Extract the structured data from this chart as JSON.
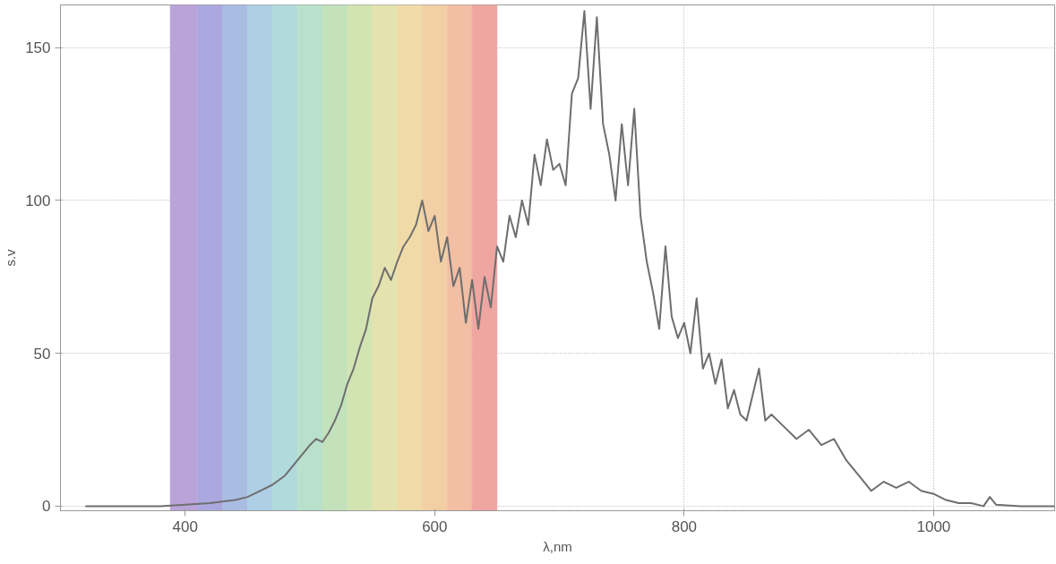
{
  "chart_data": {
    "type": "line",
    "xlabel": "λ,nm",
    "ylabel": "s.v",
    "xlim": [
      300,
      1097
    ],
    "ylim": [
      -1.5,
      164
    ],
    "xticks": [
      400,
      600,
      800,
      1000
    ],
    "yticks": [
      0,
      50,
      100,
      150
    ],
    "grid": true,
    "marker": "none",
    "line_style": "solid",
    "bands": [
      {
        "axis": "x",
        "from": 388,
        "to": 410,
        "color": "#b9a3d9"
      },
      {
        "axis": "x",
        "from": 410,
        "to": 430,
        "color": "#aaa8de"
      },
      {
        "axis": "x",
        "from": 430,
        "to": 450,
        "color": "#a9bde3"
      },
      {
        "axis": "x",
        "from": 450,
        "to": 470,
        "color": "#aecfe6"
      },
      {
        "axis": "x",
        "from": 470,
        "to": 490,
        "color": "#b1dadd"
      },
      {
        "axis": "x",
        "from": 490,
        "to": 510,
        "color": "#b8e0cb"
      },
      {
        "axis": "x",
        "from": 510,
        "to": 530,
        "color": "#c3e2bc"
      },
      {
        "axis": "x",
        "from": 530,
        "to": 550,
        "color": "#d3e4b3"
      },
      {
        "axis": "x",
        "from": 550,
        "to": 570,
        "color": "#e4e2ae"
      },
      {
        "axis": "x",
        "from": 570,
        "to": 590,
        "color": "#f0dba8"
      },
      {
        "axis": "x",
        "from": 590,
        "to": 610,
        "color": "#f3cfa6"
      },
      {
        "axis": "x",
        "from": 610,
        "to": 630,
        "color": "#f2bea4"
      },
      {
        "axis": "x",
        "from": 630,
        "to": 650,
        "color": "#efa6a0"
      }
    ],
    "series": [
      {
        "color": "#6e6e6e",
        "x": [
          320,
          350,
          380,
          400,
          420,
          440,
          450,
          460,
          470,
          480,
          490,
          500,
          505,
          510,
          515,
          520,
          525,
          530,
          535,
          540,
          545,
          550,
          555,
          560,
          565,
          570,
          575,
          580,
          585,
          590,
          595,
          600,
          605,
          610,
          615,
          620,
          625,
          630,
          635,
          640,
          645,
          650,
          655,
          660,
          665,
          670,
          675,
          680,
          685,
          690,
          695,
          700,
          705,
          710,
          715,
          720,
          725,
          730,
          735,
          740,
          745,
          750,
          755,
          760,
          765,
          770,
          775,
          780,
          785,
          790,
          795,
          800,
          805,
          810,
          815,
          820,
          825,
          830,
          835,
          840,
          845,
          850,
          860,
          865,
          870,
          880,
          890,
          900,
          910,
          920,
          930,
          940,
          950,
          960,
          970,
          980,
          990,
          1000,
          1010,
          1020,
          1030,
          1040,
          1045,
          1050,
          1070,
          1097
        ],
        "values": [
          0,
          0,
          0,
          0.5,
          1,
          2,
          3,
          5,
          7,
          10,
          15,
          20,
          22,
          21,
          24,
          28,
          33,
          40,
          45,
          52,
          58,
          68,
          72,
          78,
          74,
          80,
          85,
          88,
          92,
          100,
          90,
          95,
          80,
          88,
          72,
          78,
          60,
          74,
          58,
          75,
          65,
          85,
          80,
          95,
          88,
          100,
          92,
          115,
          105,
          120,
          110,
          112,
          105,
          135,
          140,
          162,
          130,
          160,
          125,
          115,
          100,
          125,
          105,
          130,
          95,
          80,
          70,
          58,
          85,
          62,
          55,
          60,
          50,
          68,
          45,
          50,
          40,
          48,
          32,
          38,
          30,
          28,
          45,
          28,
          30,
          26,
          22,
          25,
          20,
          22,
          15,
          10,
          5,
          8,
          6,
          8,
          5,
          4,
          2,
          1,
          1,
          0,
          3,
          0.5,
          0,
          0
        ]
      }
    ]
  }
}
